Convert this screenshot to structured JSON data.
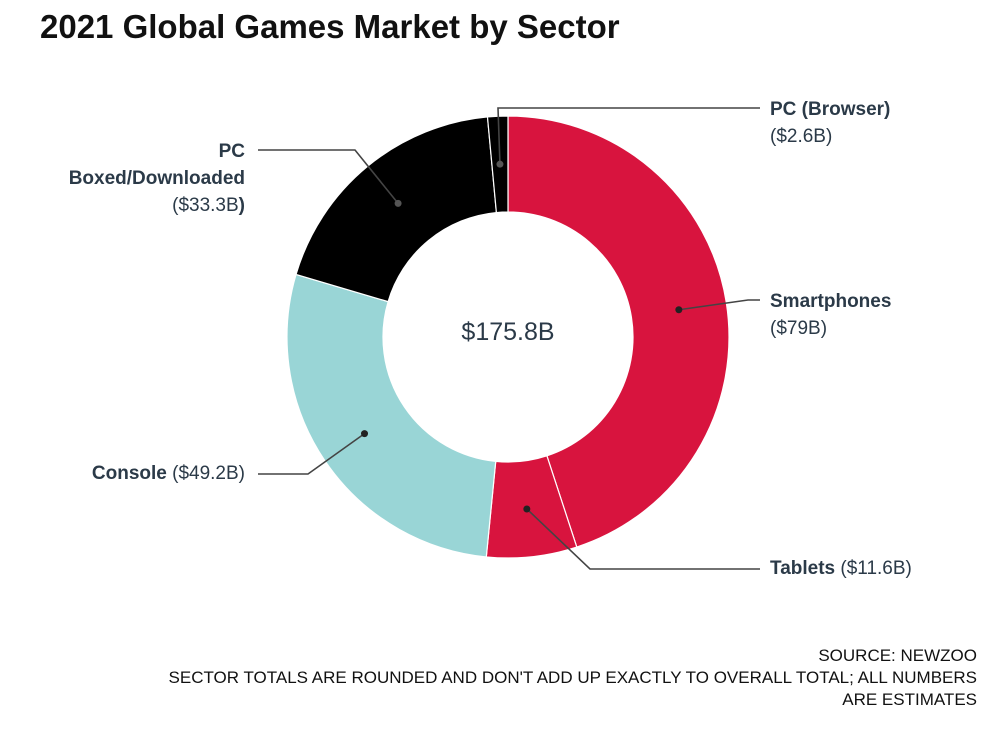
{
  "title": "2021 Global Games Market by Sector",
  "total_label": "$175.8B",
  "footer": {
    "source": "SOURCE: NEWZOO",
    "note_line1": "SECTOR TOTALS ARE ROUNDED AND DON'T ADD UP EXACTLY TO OVERALL TOTAL; ALL NUMBERS",
    "note_line2": "ARE ESTIMATES"
  },
  "chart_data": {
    "type": "pie",
    "variant": "donut",
    "title": "2021 Global Games Market by Sector",
    "total": 175.8,
    "unit": "$B",
    "series": [
      {
        "name": "Smartphones",
        "value": 79,
        "value_label": "($79B)",
        "color": "#d8143e"
      },
      {
        "name": "Tablets",
        "value": 11.6,
        "value_label": "($11.6B)",
        "color": "#d8143e"
      },
      {
        "name": "Console",
        "value": 49.2,
        "value_label": "($49.2B)",
        "color": "#99d5d6"
      },
      {
        "name": "PC Boxed/Downloaded",
        "name_line1": "PC",
        "name_line2": "Boxed/Downloaded",
        "value": 33.3,
        "value_label": "($33.3B",
        "value_label_close": ")",
        "color": "#000000"
      },
      {
        "name": "PC (Browser)",
        "value": 2.6,
        "value_label": "($2.6B)",
        "color": "#000000"
      }
    ]
  }
}
